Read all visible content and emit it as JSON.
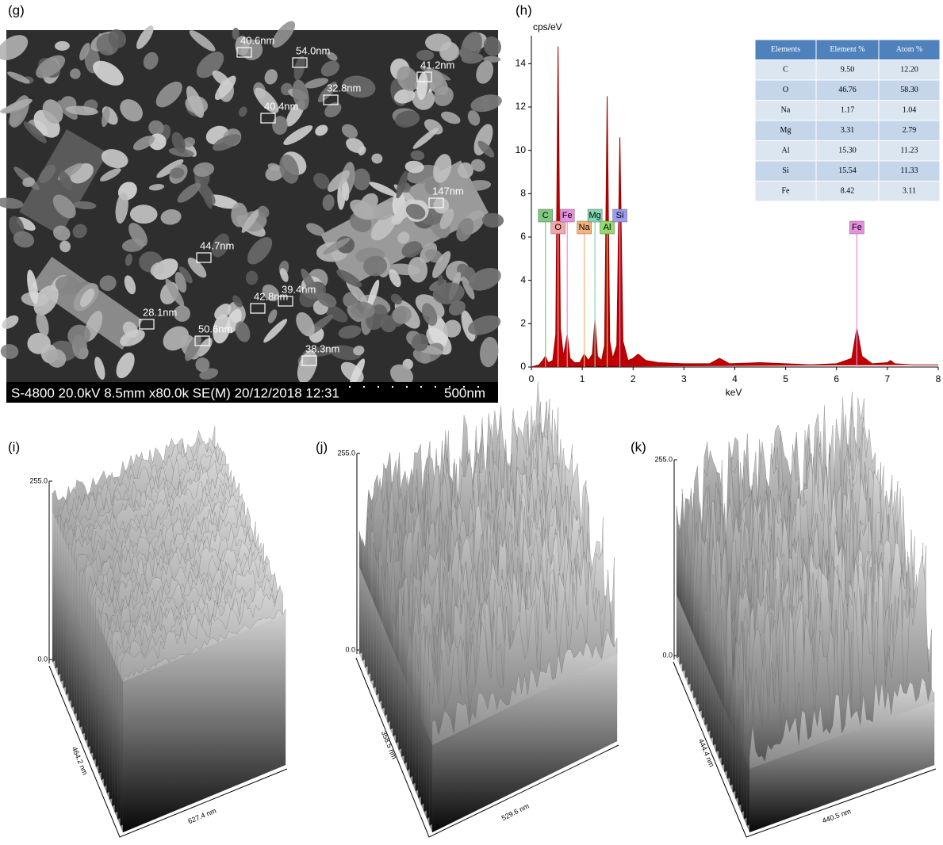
{
  "panel_labels": [
    "(g)",
    "(h)",
    "(i)",
    "(j)",
    "(k)"
  ],
  "sem": {
    "info_text": "S-4800 20.0kV 8.5mm x80.0k SE(M) 20/12/2018 12:31",
    "scale_text": "500nm",
    "measurements": [
      "40.6nm",
      "54.0nm",
      "32.8nm",
      "41.2nm",
      "40.4nm",
      "147nm",
      "44.7nm",
      "39.4nm",
      "42.8nm",
      "28.1nm",
      "50.6nm",
      "38.3nm"
    ]
  },
  "chart_data": {
    "type": "area",
    "ylabel": "cps/eV",
    "xlabel": "keV",
    "color": "#c00000",
    "xlim": [
      0,
      8
    ],
    "ylim": [
      0,
      15
    ],
    "xticks": [
      0,
      1,
      2,
      3,
      4,
      5,
      6,
      7,
      8
    ],
    "yticks": [
      0,
      2,
      4,
      6,
      8,
      10,
      12,
      14
    ],
    "x": [
      0,
      0.15,
      0.22,
      0.277,
      0.33,
      0.42,
      0.48,
      0.525,
      0.57,
      0.63,
      0.705,
      0.76,
      0.85,
      0.95,
      1.04,
      1.12,
      1.2,
      1.25,
      1.3,
      1.38,
      1.44,
      1.49,
      1.54,
      1.6,
      1.68,
      1.74,
      1.8,
      1.9,
      2.0,
      2.1,
      2.25,
      2.5,
      3.0,
      3.5,
      3.7,
      3.9,
      4.5,
      5.0,
      5.5,
      6.0,
      6.3,
      6.4,
      6.5,
      6.7,
      7.0,
      7.06,
      7.15,
      7.5,
      8.0
    ],
    "values": [
      0,
      0.1,
      0.3,
      0.5,
      0.2,
      0.3,
      1.5,
      14.8,
      1.8,
      0.5,
      1.5,
      0.4,
      0.2,
      0.2,
      0.6,
      0.3,
      0.6,
      2.2,
      0.5,
      0.3,
      1.0,
      12.5,
      1.2,
      0.4,
      1.0,
      10.6,
      1.2,
      0.3,
      0.4,
      0.6,
      0.3,
      0.2,
      0.15,
      0.15,
      0.4,
      0.15,
      0.2,
      0.15,
      0.1,
      0.15,
      0.4,
      1.8,
      0.5,
      0.15,
      0.2,
      0.3,
      0.15,
      0.1,
      0.1
    ],
    "peak_markers": [
      {
        "label": "C",
        "x": 0.277,
        "color": "#7fc97f"
      },
      {
        "label": "O",
        "x": 0.525,
        "color": "#f4a6a6"
      },
      {
        "label": "Fe",
        "x": 0.705,
        "color": "#e98fe0"
      },
      {
        "label": "Na",
        "x": 1.04,
        "color": "#f6b27a"
      },
      {
        "label": "Mg",
        "x": 1.25,
        "color": "#7fd6b0"
      },
      {
        "label": "Al",
        "x": 1.49,
        "color": "#8fdc6a"
      },
      {
        "label": "Si",
        "x": 1.74,
        "color": "#9a9af0"
      },
      {
        "label": "Fe",
        "x": 6.4,
        "color": "#e98fe0"
      }
    ]
  },
  "eds_table": {
    "header": [
      "Elements",
      "Element %",
      "Atom %"
    ],
    "rows": [
      [
        "C",
        "9.50",
        "12.20"
      ],
      [
        "O",
        "46.76",
        "58.30"
      ],
      [
        "Na",
        "1.17",
        "1.04"
      ],
      [
        "Mg",
        "3.31",
        "2.79"
      ],
      [
        "Al",
        "15.30",
        "11.23"
      ],
      [
        "Si",
        "15.54",
        "11.33"
      ],
      [
        "Fe",
        "8.42",
        "3.11"
      ]
    ]
  },
  "surfaces": [
    {
      "z_top": "255.0",
      "z_bottom": "0.0",
      "depth_label": "464.2 nm",
      "width_label": "627.4 nm"
    },
    {
      "z_top": "255.0",
      "z_bottom": "0.0",
      "depth_label": "358.5 nm",
      "width_label": "529.6 nm"
    },
    {
      "z_top": "255.0",
      "z_bottom": "0.0",
      "depth_label": "444.4 nm",
      "width_label": "440.5 nm"
    }
  ]
}
